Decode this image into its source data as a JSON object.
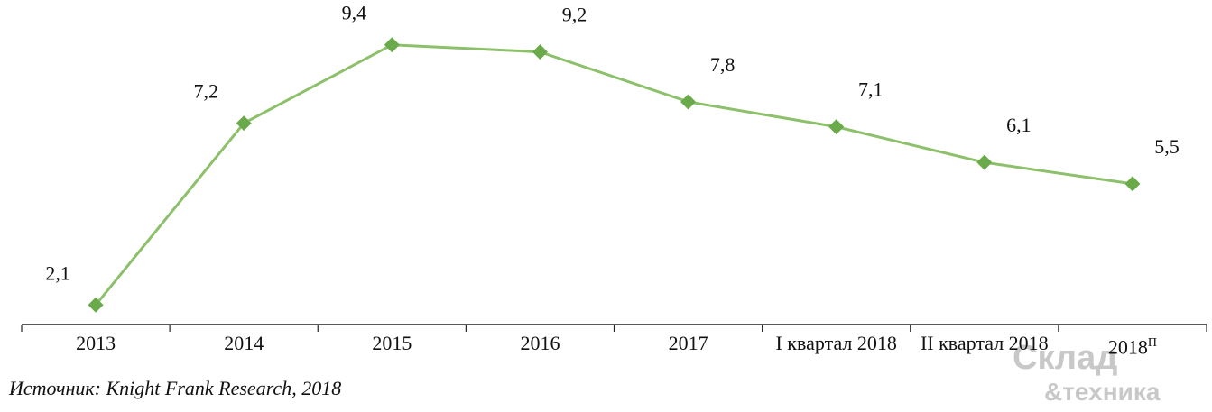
{
  "chart_data": {
    "type": "line",
    "categories": [
      "2013",
      "2014",
      "2015",
      "2016",
      "2017",
      "I квартал 2018",
      "II квартал 2018",
      "2018"
    ],
    "category_superscript": "П",
    "series": [
      {
        "color": "#6aaa4a",
        "values": [
          2.1,
          7.2,
          9.4,
          9.2,
          7.8,
          7.1,
          6.1,
          5.5
        ],
        "value_labels": [
          "2,1",
          "7,2",
          "9,4",
          "9,2",
          "7,8",
          "7,1",
          "6,1",
          "5,5"
        ]
      }
    ],
    "ylim": [
      1.5,
      10
    ],
    "source": "Источник: Knight Frank Research, 2018",
    "watermark": [
      "Склад",
      "&техника"
    ]
  }
}
